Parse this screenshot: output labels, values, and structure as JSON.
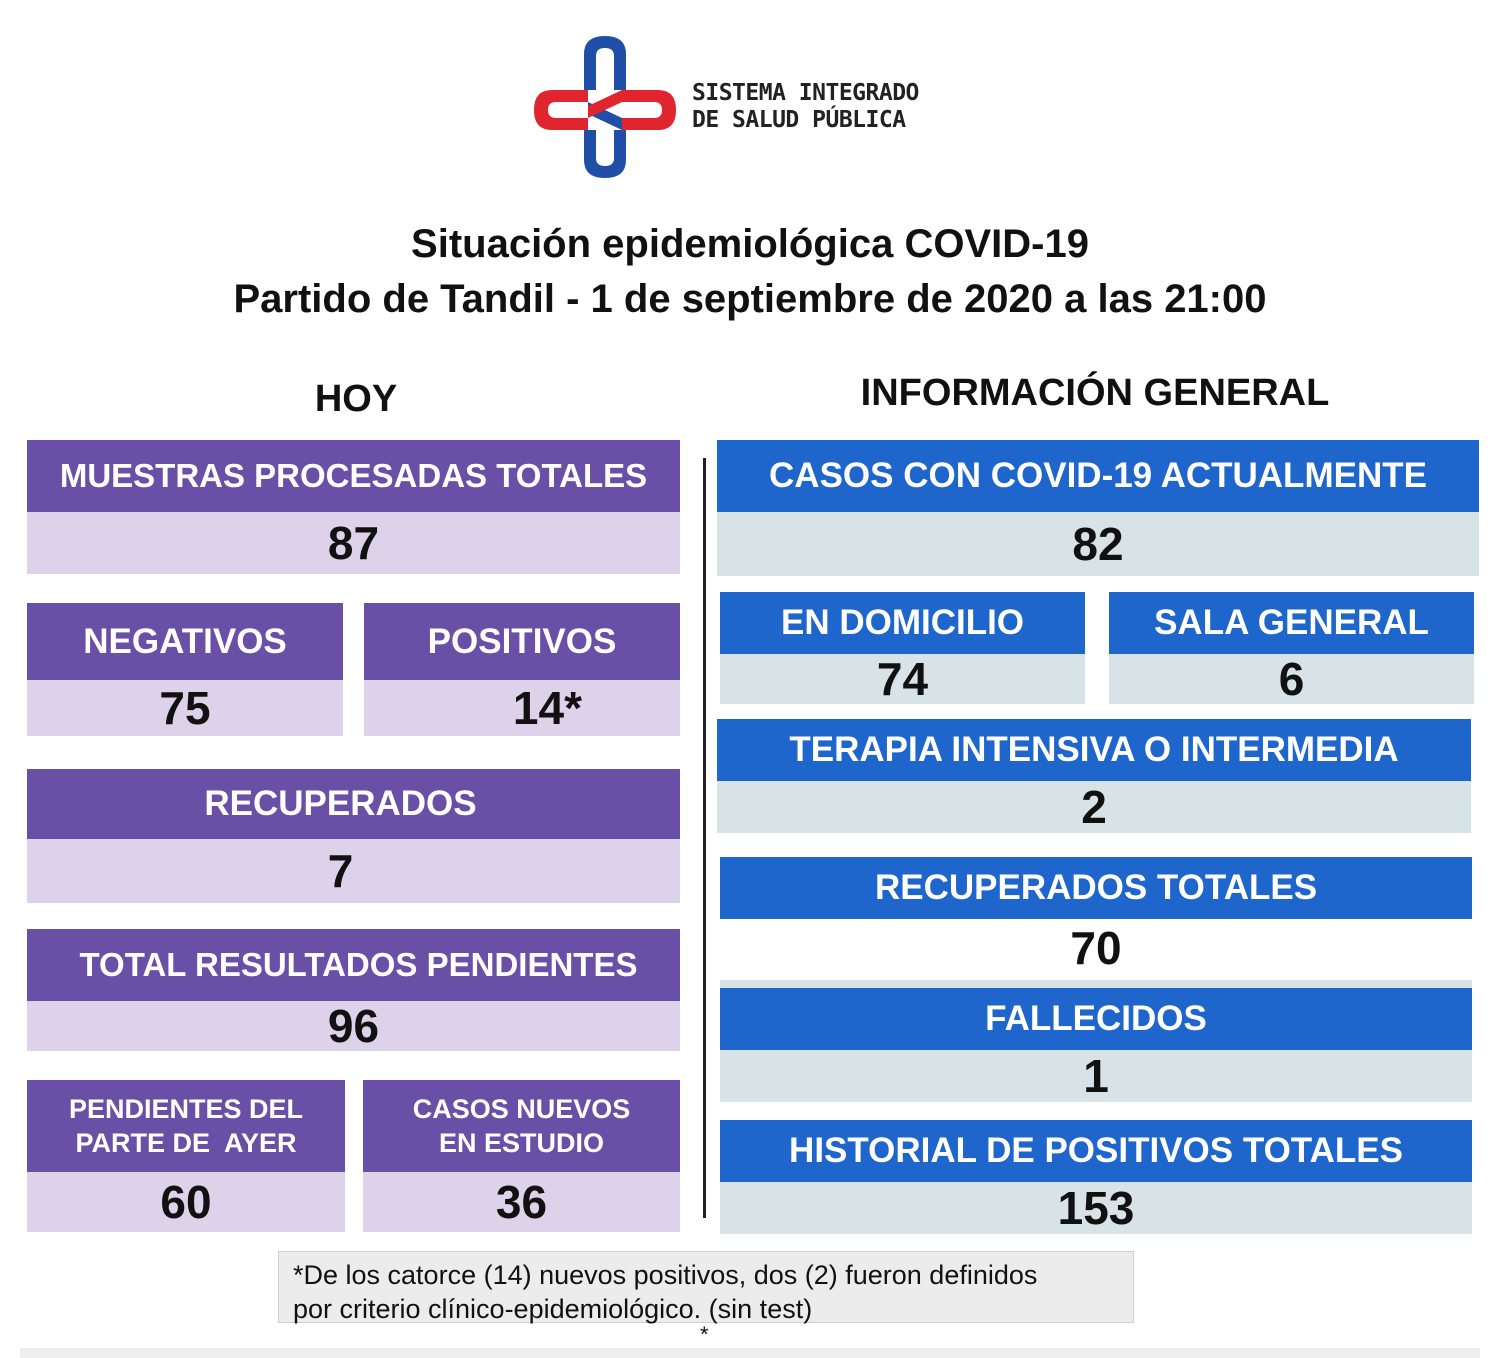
{
  "header": {
    "org_line1": "SISTEMA INTEGRADO",
    "org_line2": "DE SALUD PÚBLICA",
    "title_line1": "Situación epidemiológica COVID-19",
    "title_line2": "Partido de Tandil - 1 de septiembre de 2020 a las 21:00"
  },
  "colors": {
    "logo_red": "#e0252e",
    "logo_blue": "#1f4fa6",
    "purple_header": "#6a4fa6",
    "purple_value": "#ddd2ea",
    "blue_header": "#1f66cc",
    "blue_value": "#d7e3e6"
  },
  "hoy": {
    "title": "HOY",
    "muestras": {
      "label": "MUESTRAS PROCESADAS TOTALES",
      "value": "87"
    },
    "negativos": {
      "label": "NEGATIVOS",
      "value": "75"
    },
    "positivos": {
      "label": "POSITIVOS",
      "value": "14*"
    },
    "recuperados": {
      "label": "RECUPERADOS",
      "value": "7"
    },
    "pendientes_total": {
      "label": "TOTAL RESULTADOS PENDIENTES",
      "value": "96"
    },
    "pendientes_ayer": {
      "label_line1": "PENDIENTES DEL",
      "label_line2": "PARTE DE  AYER",
      "value": "60"
    },
    "casos_nuevos": {
      "label_line1": "CASOS NUEVOS",
      "label_line2": "EN ESTUDIO",
      "value": "36"
    }
  },
  "general": {
    "title": "INFORMACIÓN GENERAL",
    "casos_actuales": {
      "label": "CASOS CON COVID-19 ACTUALMENTE",
      "value": "82"
    },
    "domicilio": {
      "label": "EN DOMICILIO",
      "value": "74"
    },
    "sala_general": {
      "label": "SALA GENERAL",
      "value": "6"
    },
    "terapia": {
      "label": "TERAPIA INTENSIVA O INTERMEDIA",
      "value": "2"
    },
    "recuperados_totales": {
      "label": "RECUPERADOS TOTALES",
      "value": "70"
    },
    "fallecidos": {
      "label": "FALLECIDOS",
      "value": "1"
    },
    "historial": {
      "label": "HISTORIAL DE POSITIVOS TOTALES",
      "value": "153"
    }
  },
  "footnote": {
    "line1": "*De los catorce (14) nuevos positivos, dos (2) fueron definidos",
    "line2": "por criterio clínico-epidemiológico. (sin test)",
    "asterisk": "*"
  }
}
